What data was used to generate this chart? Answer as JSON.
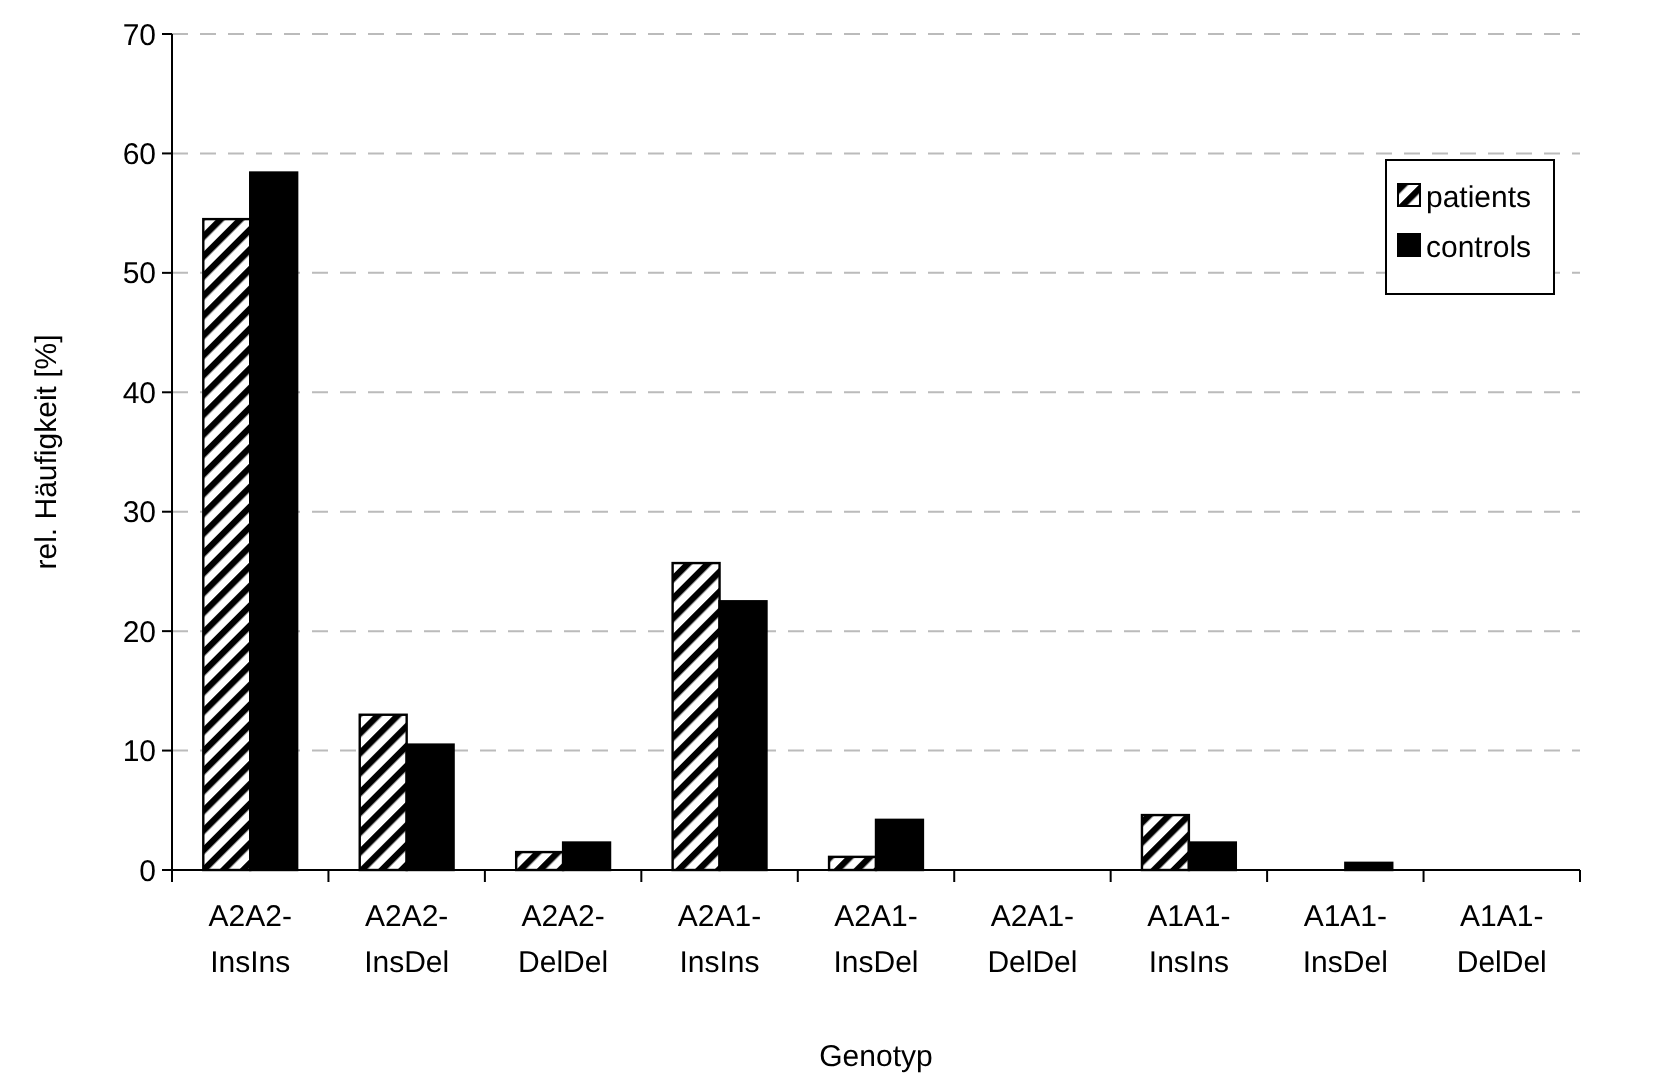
{
  "chart_data": {
    "type": "bar",
    "xlabel": "Genotyp",
    "ylabel": "rel. Häufigkeit [%]",
    "categories": [
      "A2A2-InsIns",
      "A2A2-InsDel",
      "A2A2-DelDel",
      "A2A1-InsIns",
      "A2A1-InsDel",
      "A2A1-DelDel",
      "A1A1-InsIns",
      "A1A1-InsDel",
      "A1A1-DelDel"
    ],
    "series": [
      {
        "name": "patients",
        "color": "#000000",
        "values": [
          54.5,
          13.0,
          1.5,
          25.7,
          1.1,
          0,
          4.6,
          0,
          0
        ]
      },
      {
        "name": "controls",
        "color": "#000000",
        "values": [
          58.4,
          10.5,
          2.3,
          22.5,
          4.2,
          0,
          2.3,
          0.6,
          0
        ]
      }
    ],
    "ylim": [
      0,
      70
    ],
    "yticks": [
      0,
      10,
      20,
      30,
      40,
      50,
      60,
      70
    ],
    "grid": "y",
    "legend": "top right"
  }
}
